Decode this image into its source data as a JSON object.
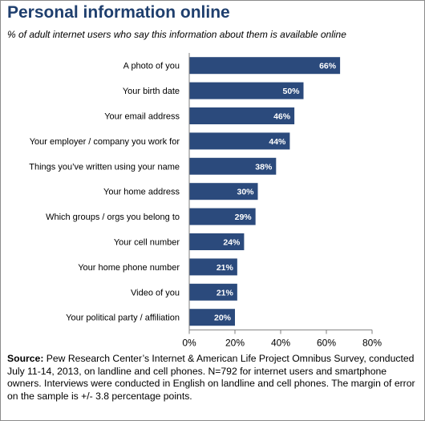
{
  "title": "Personal information online",
  "subtitle": "% of adult internet users who say this information about them is available online",
  "chart_data": {
    "type": "bar",
    "orientation": "horizontal",
    "categories": [
      "A photo of you",
      "Your birth date",
      "Your email address",
      "Your employer / company you work for",
      "Things you’ve written using your name",
      "Your home address",
      "Which groups / orgs you belong to",
      "Your cell number",
      "Your home phone number",
      "Video of you",
      "Your political party / affiliation"
    ],
    "values": [
      66,
      50,
      46,
      44,
      38,
      30,
      29,
      24,
      21,
      21,
      20
    ],
    "value_labels": [
      "66%",
      "50%",
      "46%",
      "44%",
      "38%",
      "30%",
      "29%",
      "24%",
      "21%",
      "21%",
      "20%"
    ],
    "xlim": [
      0,
      80
    ],
    "x_ticks": [
      0,
      20,
      40,
      60,
      80
    ],
    "x_tick_labels": [
      "0%",
      "20%",
      "40%",
      "60%",
      "80%"
    ],
    "bar_color": "#2b4a7c",
    "grid": false
  },
  "source": {
    "label": "Source:",
    "text": " Pew Research Center’s Internet & American Life Project Omnibus Survey, conducted July 11-14, 2013, on landline and cell phones. N=792 for internet users and smartphone owners. Interviews were conducted in English on landline and cell phones. The margin of error on the sample is +/- 3.8 percentage points."
  }
}
